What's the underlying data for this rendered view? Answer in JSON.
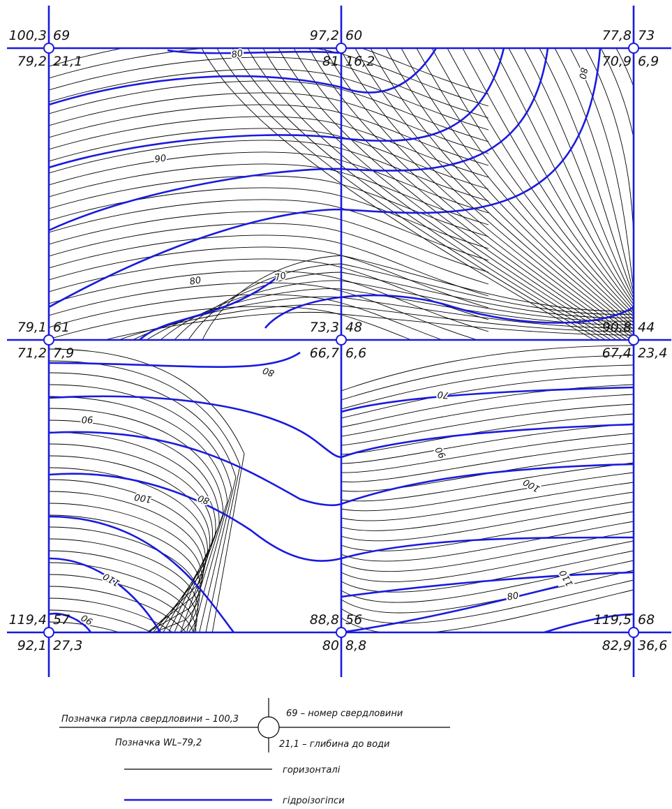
{
  "wells": [
    {
      "elevation": "100,3",
      "number": "69",
      "water_level": "79,2",
      "depth": "21,1"
    },
    {
      "elevation": "97,2",
      "number": "60",
      "water_level": "81",
      "depth": "16,2"
    },
    {
      "elevation": "77,8",
      "number": "73",
      "water_level": "70,9",
      "depth": "6,9"
    },
    {
      "elevation": "79,1",
      "number": "61",
      "water_level": "71,2",
      "depth": "7,9"
    },
    {
      "elevation": "73,3",
      "number": "48",
      "water_level": "66,7",
      "depth": "6,6"
    },
    {
      "elevation": "90,8",
      "number": "44",
      "water_level": "67,4",
      "depth": "23,4"
    },
    {
      "elevation": "119,4",
      "number": "57",
      "water_level": "92,1",
      "depth": "27,3"
    },
    {
      "elevation": "88,8",
      "number": "56",
      "water_level": "80",
      "depth": "8,8"
    },
    {
      "elevation": "119,5",
      "number": "68",
      "water_level": "82,9",
      "depth": "36,6"
    }
  ],
  "contour_labels": [
    "80",
    "90",
    "80",
    "70",
    "80",
    "80",
    "90",
    "100",
    "80",
    "110",
    "90",
    "70",
    "90",
    "100",
    "110",
    "80"
  ],
  "legend": {
    "elevation_note": "Позначка гирла свердловини – 100,3",
    "number_note": "69 – номер свердловини",
    "water_level_note": "Позначка WL–79,2",
    "depth_note": "21,1 – глибина до води",
    "contours": "горизонталі",
    "hydroisohypses": "гідроізогіпси"
  }
}
